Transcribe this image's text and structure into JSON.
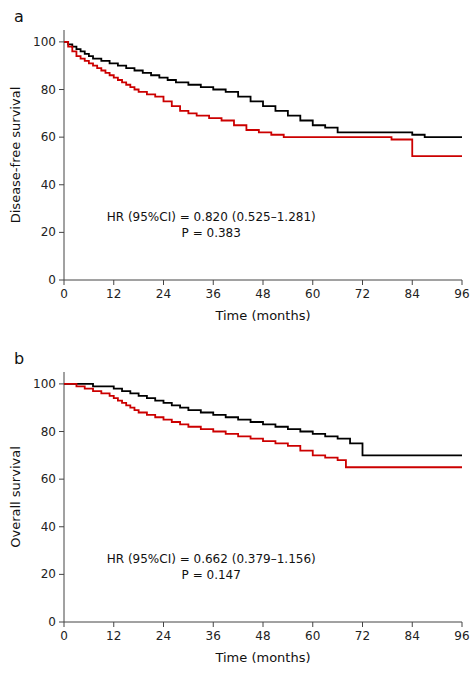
{
  "chart_data": [
    {
      "type": "step",
      "title": "a",
      "ylabel": "Disease-free survival",
      "xlabel": "Time (months)",
      "annotations": [
        "HR (95%CI) = 0.820 (0.525–1.281)",
        "P = 0.383"
      ],
      "xlim": [
        0,
        96
      ],
      "ylim": [
        0,
        105
      ],
      "xticks": [
        0,
        12,
        24,
        36,
        48,
        60,
        72,
        84,
        96
      ],
      "yticks": [
        0,
        20,
        40,
        60,
        80,
        100
      ],
      "series": [
        {
          "color": "#000000",
          "x": [
            0,
            1,
            2,
            3,
            4,
            5,
            6,
            7,
            9,
            11,
            13,
            15,
            17,
            19,
            21,
            23,
            25,
            27,
            30,
            33,
            36,
            39,
            42,
            45,
            48,
            51,
            54,
            57,
            60,
            63,
            66,
            84,
            87,
            96
          ],
          "values": [
            100,
            99,
            98,
            97,
            96,
            95,
            94,
            93,
            92,
            91,
            90,
            89,
            88,
            87,
            86,
            85,
            84,
            83,
            82,
            81,
            80,
            79,
            77,
            75,
            73,
            71,
            69,
            67,
            65,
            64,
            62,
            61,
            60,
            60
          ]
        },
        {
          "color": "#cc0000",
          "x": [
            0,
            1,
            2,
            3,
            4,
            5,
            6,
            7,
            8,
            9,
            10,
            11,
            12,
            13,
            14,
            15,
            16,
            17,
            18,
            20,
            22,
            24,
            26,
            28,
            30,
            32,
            35,
            38,
            41,
            44,
            47,
            50,
            53,
            79,
            84,
            90,
            96
          ],
          "values": [
            100,
            98,
            96,
            94,
            93,
            92,
            91,
            90,
            89,
            88,
            87,
            86,
            85,
            84,
            83,
            82,
            81,
            80,
            79,
            78,
            77,
            75,
            73,
            71,
            70,
            69,
            68,
            67,
            65,
            63,
            62,
            61,
            60,
            59,
            52,
            52,
            52
          ]
        }
      ]
    },
    {
      "type": "step",
      "title": "b",
      "ylabel": "Overall survival",
      "xlabel": "Time (months)",
      "annotations": [
        "HR (95%CI) = 0.662 (0.379–1.156)",
        "P = 0.147"
      ],
      "xlim": [
        0,
        96
      ],
      "ylim": [
        0,
        105
      ],
      "xticks": [
        0,
        12,
        24,
        36,
        48,
        60,
        72,
        84,
        96
      ],
      "yticks": [
        0,
        20,
        40,
        60,
        80,
        100
      ],
      "series": [
        {
          "color": "#000000",
          "x": [
            0,
            4,
            7,
            10,
            12,
            14,
            16,
            18,
            20,
            22,
            24,
            26,
            28,
            30,
            33,
            36,
            39,
            42,
            45,
            48,
            51,
            54,
            57,
            60,
            63,
            66,
            69,
            72,
            96
          ],
          "values": [
            100,
            100,
            99,
            99,
            98,
            97,
            96,
            95,
            94,
            93,
            92,
            91,
            90,
            89,
            88,
            87,
            86,
            85,
            84,
            83,
            82,
            81,
            80,
            79,
            78,
            77,
            75,
            70,
            70
          ]
        },
        {
          "color": "#cc0000",
          "x": [
            0,
            3,
            5,
            7,
            9,
            11,
            12,
            13,
            14,
            15,
            16,
            17,
            18,
            20,
            22,
            24,
            26,
            28,
            30,
            33,
            36,
            39,
            42,
            45,
            48,
            51,
            54,
            57,
            60,
            63,
            66,
            68,
            96
          ],
          "values": [
            100,
            99,
            98,
            97,
            96,
            95,
            94,
            93,
            92,
            91,
            90,
            89,
            88,
            87,
            86,
            85,
            84,
            83,
            82,
            81,
            80,
            79,
            78,
            77,
            76,
            75,
            74,
            72,
            70,
            69,
            68,
            65,
            65
          ]
        }
      ]
    }
  ]
}
